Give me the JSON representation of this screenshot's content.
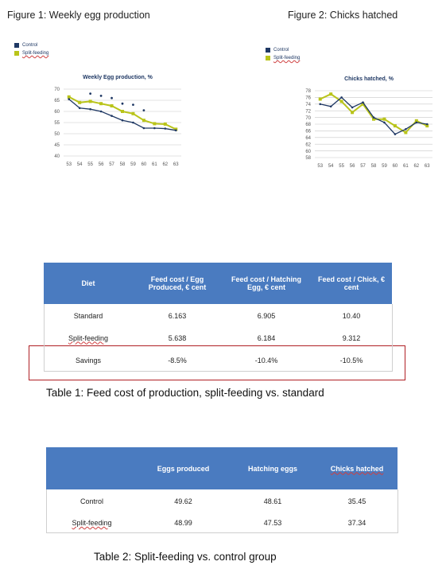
{
  "figures": {
    "figure1_caption": "Figure 1: Weekly egg production",
    "figure2_caption": "Figure 2: Chicks hatched"
  },
  "legend": {
    "items": [
      {
        "label": "Control",
        "color": "#1f3864"
      },
      {
        "label": "Split-feeding",
        "color": "#b9c41a"
      }
    ]
  },
  "chart_data": [
    {
      "type": "line",
      "title": "Weekly Egg production, %",
      "xlabel": "",
      "ylabel": "",
      "x": [
        "53",
        "54",
        "55",
        "56",
        "57",
        "58",
        "59",
        "60",
        "61",
        "62",
        "63"
      ],
      "ylim": [
        40,
        70
      ],
      "yticks": [
        40,
        45,
        50,
        55,
        60,
        65,
        70
      ],
      "grid": true,
      "series": [
        {
          "name": "Control",
          "color": "#1f3864",
          "values": [
            65.5,
            61.5,
            61,
            60,
            58,
            56,
            55,
            52.5,
            52.5,
            52.3,
            51.5
          ]
        },
        {
          "name": "Split-feeding",
          "color": "#b9c41a",
          "values": [
            66.5,
            64,
            64.5,
            63.5,
            62.5,
            60,
            59,
            56,
            54.5,
            54.3,
            52
          ]
        }
      ],
      "dots": {
        "color": "#1f3864",
        "x": [
          "55",
          "56",
          "57",
          "58",
          "59",
          "60"
        ],
        "values": [
          68,
          67,
          66,
          63.5,
          63,
          60.5
        ]
      }
    },
    {
      "type": "line",
      "title": "Chicks hatched, %",
      "xlabel": "",
      "ylabel": "",
      "x": [
        "53",
        "54",
        "55",
        "56",
        "57",
        "58",
        "59",
        "60",
        "61",
        "62",
        "63"
      ],
      "ylim": [
        58,
        78
      ],
      "yticks": [
        58,
        60,
        62,
        64,
        66,
        68,
        70,
        72,
        74,
        76,
        78
      ],
      "grid": true,
      "series": [
        {
          "name": "Control",
          "color": "#1f3864",
          "values": [
            74,
            73.3,
            76,
            73,
            74.5,
            70,
            68.5,
            65,
            66.5,
            68.5,
            68
          ]
        },
        {
          "name": "Split-feeding",
          "color": "#b9c41a",
          "values": [
            75.5,
            77,
            74.8,
            71.5,
            74,
            69.5,
            69.5,
            67.5,
            65.5,
            69,
            67.5
          ]
        }
      ]
    }
  ],
  "table1": {
    "headers": [
      "Diet",
      "Feed cost / Egg Produced, € cent",
      "Feed cost / Hatching Egg, € cent",
      "Feed cost / Chick, € cent"
    ],
    "rows": [
      [
        "Standard",
        "6.163",
        "6.905",
        "10.40"
      ],
      [
        "Split-feeding",
        "5.638",
        "6.184",
        "9.312"
      ],
      [
        "Savings",
        "-8.5%",
        "-10.4%",
        "-10.5%"
      ]
    ],
    "caption": "Table 1: Feed cost of production, split-feeding vs. standard"
  },
  "table2": {
    "headers": [
      "",
      "Eggs produced",
      "Hatching eggs",
      "Chicks hatched"
    ],
    "rows": [
      [
        "Control",
        "49.62",
        "48.61",
        "35.45"
      ],
      [
        "Split-feeding",
        "48.99",
        "47.53",
        "37.34"
      ]
    ],
    "caption": "Table 2: Split-feeding vs. control group"
  }
}
